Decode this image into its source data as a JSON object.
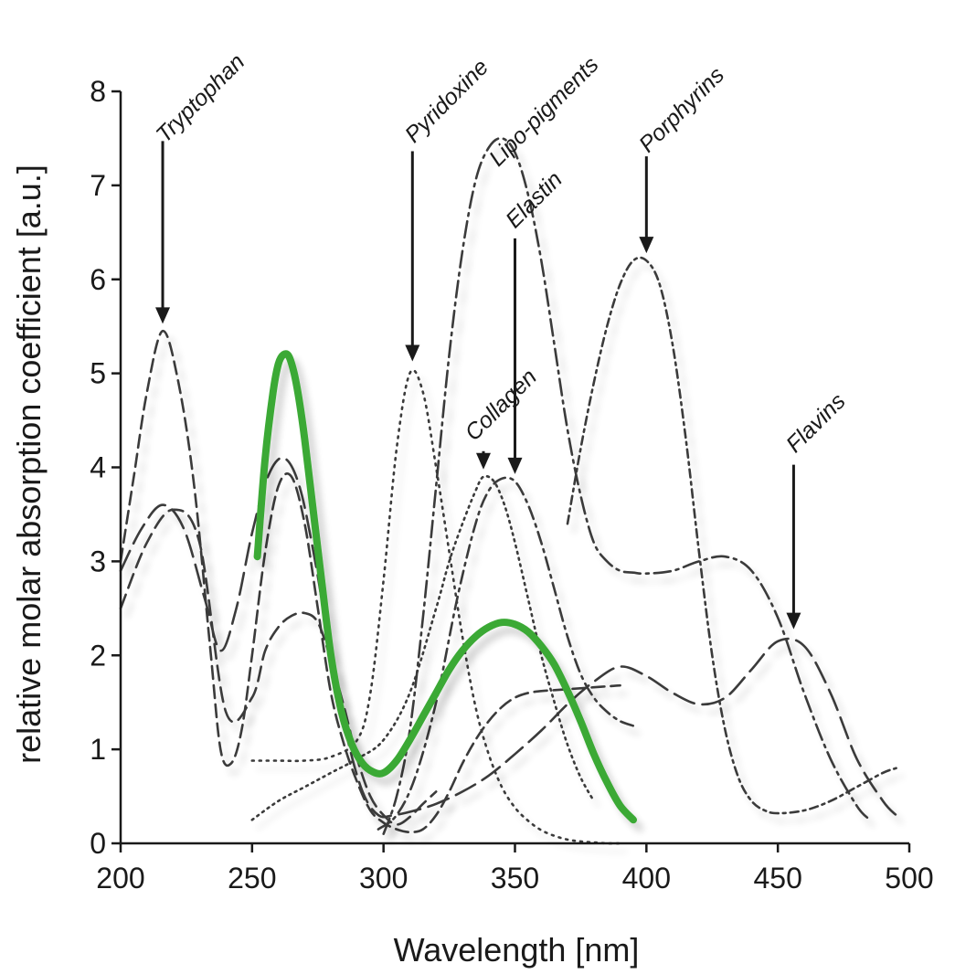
{
  "chart_data": {
    "type": "line",
    "xlabel": "Wavelength [nm]",
    "ylabel": "relative molar absorption coefficient  [a.u.]",
    "xlim": [
      200,
      500
    ],
    "ylim": [
      0,
      8
    ],
    "xticks": [
      "200",
      "250",
      "300",
      "350",
      "400",
      "450",
      "500"
    ],
    "yticks": [
      "0",
      "1",
      "2",
      "3",
      "4",
      "5",
      "6",
      "7",
      "8"
    ],
    "grid": false,
    "annotations": [
      {
        "id": "tryptophan",
        "text": "Tryptophan",
        "x": 216,
        "y": 5.45
      },
      {
        "id": "pyridoxine",
        "text": "Pyridoxine",
        "x": 311,
        "y": 5.05
      },
      {
        "id": "lipo",
        "text": "Lipo-pigments",
        "x": 343,
        "y": 7.55
      },
      {
        "id": "elastin",
        "text": "Elastin",
        "x": 350,
        "y": 3.85
      },
      {
        "id": "collagen",
        "text": "Collagen",
        "x": 338,
        "y": 3.9
      },
      {
        "id": "porphyrins",
        "text": "Porphyrins",
        "x": 400,
        "y": 6.2
      },
      {
        "id": "flavins",
        "text": "Flavins",
        "x": 456,
        "y": 2.2
      }
    ],
    "series": [
      {
        "style": "highlight",
        "color": "#3aa935",
        "x": [
          252,
          255,
          258,
          260,
          262,
          264,
          266,
          268,
          270,
          273,
          276,
          280,
          284,
          288,
          292,
          296,
          300,
          305,
          310,
          315,
          320,
          325,
          330,
          335,
          340,
          345,
          350,
          355,
          360,
          365,
          370,
          375,
          380,
          385,
          390,
          395
        ],
        "y": [
          3.05,
          4.1,
          4.8,
          5.1,
          5.2,
          5.18,
          5.0,
          4.7,
          4.3,
          3.6,
          2.9,
          2.0,
          1.4,
          1.05,
          0.85,
          0.76,
          0.75,
          0.88,
          1.1,
          1.35,
          1.6,
          1.85,
          2.05,
          2.2,
          2.3,
          2.35,
          2.33,
          2.25,
          2.1,
          1.9,
          1.62,
          1.3,
          0.95,
          0.65,
          0.4,
          0.25
        ]
      },
      {
        "style": "dash",
        "x": [
          200,
          205,
          210,
          216,
          222,
          228,
          234,
          238,
          242,
          246,
          250,
          255,
          260,
          265,
          270,
          275,
          280,
          285,
          290,
          295,
          300,
          305,
          310,
          315,
          320,
          325,
          330,
          335,
          340,
          345,
          350,
          355,
          360,
          365,
          370,
          375,
          380,
          385,
          390
        ],
        "y": [
          3.0,
          3.9,
          4.8,
          5.45,
          4.9,
          3.8,
          2.1,
          1.0,
          0.85,
          1.2,
          2.0,
          3.1,
          3.8,
          3.9,
          3.4,
          2.5,
          1.6,
          1.05,
          0.65,
          0.35,
          0.22,
          0.15,
          0.12,
          0.15,
          0.3,
          0.55,
          0.85,
          1.1,
          1.3,
          1.45,
          1.55,
          1.6,
          1.62,
          1.63,
          1.64,
          1.65,
          1.66,
          1.67,
          1.68
        ]
      },
      {
        "style": "longdash",
        "x": [
          200,
          208,
          216,
          224,
          232,
          238,
          244,
          250,
          256,
          262,
          268,
          274,
          280,
          286,
          292,
          298,
          304,
          312,
          320,
          330,
          340,
          350,
          360,
          370,
          380,
          390,
          400,
          410,
          420,
          430,
          440,
          450,
          460,
          470,
          480,
          490,
          495
        ],
        "y": [
          2.9,
          3.35,
          3.6,
          3.35,
          2.6,
          2.05,
          2.5,
          3.3,
          3.9,
          4.1,
          3.8,
          3.0,
          2.0,
          1.15,
          0.55,
          0.3,
          0.3,
          0.35,
          0.42,
          0.55,
          0.72,
          0.95,
          1.2,
          1.48,
          1.72,
          1.88,
          1.78,
          1.6,
          1.48,
          1.55,
          1.85,
          2.15,
          2.1,
          1.6,
          0.9,
          0.45,
          0.3
        ]
      },
      {
        "style": "dash2",
        "x": [
          200,
          210,
          220,
          230,
          240,
          250,
          255,
          260,
          265,
          270,
          275,
          280,
          285,
          290,
          295,
          300,
          305,
          310,
          315,
          320
        ],
        "y": [
          2.5,
          3.2,
          3.55,
          3.2,
          1.4,
          1.55,
          2.05,
          2.3,
          2.42,
          2.45,
          2.35,
          1.95,
          1.45,
          0.9,
          0.5,
          0.3,
          0.2,
          0.28,
          0.42,
          0.55
        ]
      },
      {
        "style": "dotted",
        "x": [
          250,
          260,
          270,
          280,
          290,
          295,
          300,
          305,
          310,
          315,
          320,
          325,
          330,
          335,
          340,
          345,
          350,
          355,
          360,
          365,
          370,
          375,
          380,
          385,
          390
        ],
        "y": [
          0.88,
          0.88,
          0.88,
          0.92,
          1.1,
          1.6,
          2.8,
          4.2,
          5.0,
          4.8,
          4.0,
          3.1,
          2.2,
          1.45,
          0.95,
          0.6,
          0.38,
          0.24,
          0.14,
          0.08,
          0.04,
          0.02,
          0.01,
          0.0,
          0.0
        ]
      },
      {
        "style": "dotted2",
        "x": [
          250,
          260,
          270,
          280,
          290,
          300,
          310,
          320,
          325,
          330,
          335,
          338,
          342,
          346,
          350,
          355,
          360,
          365,
          370,
          375,
          380
        ],
        "y": [
          0.25,
          0.45,
          0.6,
          0.75,
          0.9,
          1.1,
          1.6,
          2.5,
          3.0,
          3.4,
          3.75,
          3.9,
          3.85,
          3.6,
          3.2,
          2.6,
          2.0,
          1.5,
          1.05,
          0.7,
          0.45
        ]
      },
      {
        "style": "dashdot",
        "x": [
          300,
          305,
          310,
          315,
          320,
          325,
          330,
          335,
          340,
          345,
          350,
          355,
          360,
          365,
          370,
          375,
          380,
          385,
          390,
          395,
          400,
          410,
          420,
          430,
          440,
          450,
          460,
          470,
          480,
          485
        ],
        "y": [
          0.1,
          0.5,
          1.2,
          2.4,
          3.8,
          5.2,
          6.3,
          7.05,
          7.4,
          7.5,
          7.35,
          6.9,
          6.2,
          5.3,
          4.4,
          3.7,
          3.2,
          3.0,
          2.9,
          2.88,
          2.87,
          2.9,
          3.0,
          3.05,
          2.9,
          2.4,
          1.6,
          0.9,
          0.4,
          0.25
        ]
      },
      {
        "style": "dashdot2",
        "x": [
          298,
          305,
          312,
          320,
          328,
          335,
          340,
          345,
          350,
          355,
          360,
          365,
          370,
          375,
          380,
          385,
          390,
          395
        ],
        "y": [
          0.15,
          0.3,
          0.7,
          1.5,
          2.6,
          3.4,
          3.75,
          3.88,
          3.85,
          3.6,
          3.2,
          2.7,
          2.2,
          1.8,
          1.55,
          1.4,
          1.3,
          1.25
        ]
      },
      {
        "style": "shortdashdot",
        "x": [
          370,
          375,
          380,
          385,
          390,
          395,
          400,
          405,
          410,
          415,
          420,
          425,
          430,
          435,
          440,
          445,
          450,
          460,
          470,
          480,
          490,
          495
        ],
        "y": [
          3.4,
          4.2,
          4.9,
          5.5,
          5.95,
          6.2,
          6.2,
          5.95,
          5.3,
          4.3,
          3.1,
          2.0,
          1.2,
          0.7,
          0.45,
          0.35,
          0.32,
          0.35,
          0.45,
          0.6,
          0.75,
          0.8
        ]
      }
    ]
  }
}
